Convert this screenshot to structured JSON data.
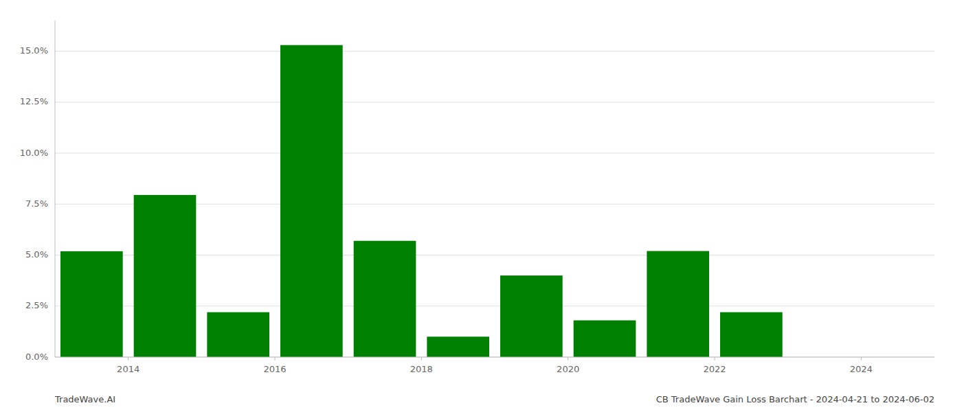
{
  "chart_data": {
    "type": "bar",
    "x": [
      2013.5,
      2014.5,
      2015.5,
      2016.5,
      2017.5,
      2018.5,
      2019.5,
      2020.5,
      2021.5,
      2022.5,
      2023.5
    ],
    "values": [
      0.0519,
      0.0795,
      0.022,
      0.153,
      0.057,
      0.01,
      0.04,
      0.018,
      0.052,
      0.022,
      0.0
    ],
    "color": "#008000",
    "xlim": [
      2013.0,
      2025.0
    ],
    "xticks": [
      2014,
      2016,
      2018,
      2020,
      2022,
      2024
    ],
    "ylim": [
      0.0,
      0.165
    ],
    "yticks": [
      {
        "value": 0.0,
        "label": "0.0%"
      },
      {
        "value": 0.025,
        "label": "2.5%"
      },
      {
        "value": 0.05,
        "label": "5.0%"
      },
      {
        "value": 0.075,
        "label": "7.5%"
      },
      {
        "value": 0.1,
        "label": "10.0%"
      },
      {
        "value": 0.125,
        "label": "12.5%"
      },
      {
        "value": 0.15,
        "label": "15.0%"
      }
    ],
    "grid": true,
    "annotations": [
      "TradeWave.AI",
      "CB TradeWave Gain Loss Barchart - 2024-04-21 to 2024-06-02"
    ]
  }
}
